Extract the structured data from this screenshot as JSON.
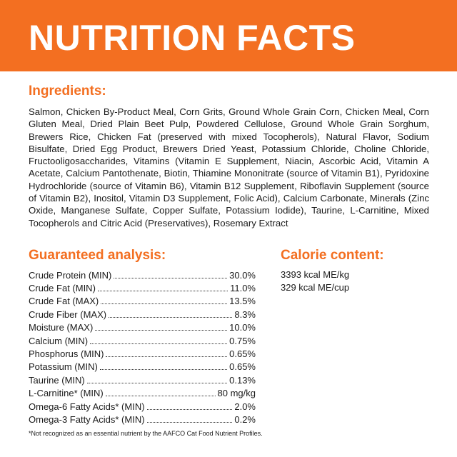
{
  "header": {
    "title": "NUTRITION FACTS"
  },
  "ingredients": {
    "heading": "Ingredients:",
    "text": "Salmon, Chicken By-Product Meal, Corn Grits, Ground Whole Grain Corn, Chicken Meal, Corn Gluten Meal, Dried Plain Beet Pulp, Powdered Cellulose, Ground Whole Grain Sorghum, Brewers Rice, Chicken Fat (preserved with mixed Tocopherols), Natural Flavor, Sodium Bisulfate, Dried Egg Product, Brewers Dried Yeast, Potassium Chloride, Choline Chloride, Fructooligosaccharides, Vitamins (Vitamin E Supplement, Niacin, Ascorbic Acid, Vitamin A Acetate, Calcium Pantothenate, Biotin, Thiamine Mononitrate (source of Vitamin B1), Pyridoxine Hydrochloride (source of Vitamin B6), Vitamin B12 Supplement, Riboflavin Supplement (source of Vitamin B2), Inositol, Vitamin D3 Supplement, Folic Acid), Calcium Carbonate, Minerals (Zinc Oxide, Manganese Sulfate, Copper Sulfate, Potassium Iodide), Taurine, L-Carnitine, Mixed Tocopherols and Citric Acid (Preservatives), Rosemary Extract"
  },
  "analysis": {
    "heading": "Guaranteed analysis:",
    "rows": [
      [
        "Crude Protein (MIN)",
        "30.0%"
      ],
      [
        "Crude Fat (MIN)",
        "11.0%"
      ],
      [
        "Crude Fat (MAX)",
        "13.5%"
      ],
      [
        "Crude Fiber (MAX)",
        "8.3%"
      ],
      [
        "Moisture (MAX)",
        "10.0%"
      ],
      [
        "Calcium (MIN)",
        "0.75%"
      ],
      [
        "Phosphorus (MIN)",
        "0.65%"
      ],
      [
        "Potassium (MIN)",
        "0.65%"
      ],
      [
        "Taurine (MIN)",
        "0.13%"
      ],
      [
        "L-Carnitine* (MIN)",
        "80 mg/kg"
      ],
      [
        "Omega-6 Fatty Acids* (MIN)",
        "2.0%"
      ],
      [
        "Omega-3 Fatty Acids* (MIN)",
        "0.2%"
      ]
    ]
  },
  "calories": {
    "heading": "Calorie content:",
    "lines": [
      "3393 kcal ME/kg",
      "329 kcal ME/cup"
    ]
  },
  "footnote": "*Not recognized as an essential nutrient by the AAFCO Cat Food Nutrient Profiles."
}
